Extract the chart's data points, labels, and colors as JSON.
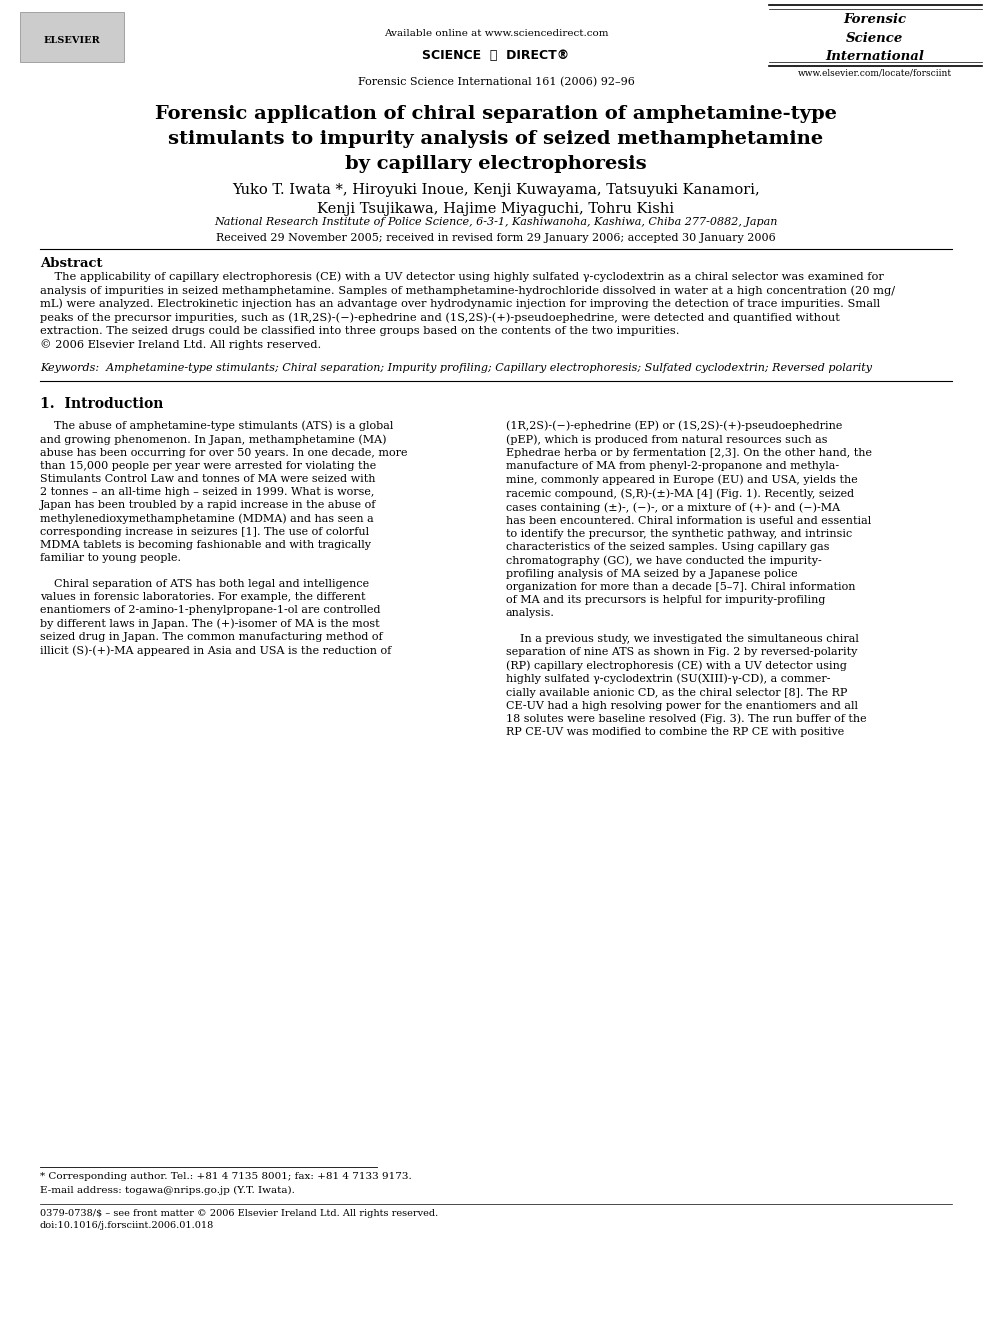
{
  "background_color": "#ffffff",
  "header": {
    "available_online": "Available online at www.sciencedirect.com",
    "journal_info": "Forensic Science International 161 (2006) 92–96",
    "journal_name_lines": [
      "Forensic",
      "Science",
      "International"
    ],
    "website": "www.elsevier.com/locate/forsciint"
  },
  "title": "Forensic application of chiral separation of amphetamine-type\nstimulants to impurity analysis of seized methamphetamine\nby capillary electrophoresis",
  "authors": "Yuko T. Iwata *, Hiroyuki Inoue, Kenji Kuwayama, Tatsuyuki Kanamori,\nKenji Tsujikawa, Hajime Miyaguchi, Tohru Kishi",
  "affiliation": "National Research Institute of Police Science, 6-3-1, Kashiwanoha, Kashiwa, Chiba 277-0882, Japan",
  "received": "Received 29 November 2005; received in revised form 29 January 2006; accepted 30 January 2006",
  "abstract_title": "Abstract",
  "abstract_text": "    The applicability of capillary electrophoresis (CE) with a UV detector using highly sulfated γ-cyclodextrin as a chiral selector was examined for\nanalysis of impurities in seized methamphetamine. Samples of methamphetamine-hydrochloride dissolved in water at a high concentration (20 mg/\nmL) were analyzed. Electrokinetic injection has an advantage over hydrodynamic injection for improving the detection of trace impurities. Small\npeaks of the precursor impurities, such as (1R,2S)-(−)-ephedrine and (1S,2S)-(+)-pseudoephedrine, were detected and quantified without\nextraction. The seized drugs could be classified into three groups based on the contents of the two impurities.\n© 2006 Elsevier Ireland Ltd. All rights reserved.",
  "keywords": "Keywords:  Amphetamine-type stimulants; Chiral separation; Impurity profiling; Capillary electrophoresis; Sulfated cyclodextrin; Reversed polarity",
  "section1_title": "1.  Introduction",
  "section1_col1": "    The abuse of amphetamine-type stimulants (ATS) is a global\nand growing phenomenon. In Japan, methamphetamine (MA)\nabuse has been occurring for over 50 years. In one decade, more\nthan 15,000 people per year were arrested for violating the\nStimulants Control Law and tonnes of MA were seized with\n2 tonnes – an all-time high – seized in 1999. What is worse,\nJapan has been troubled by a rapid increase in the abuse of\nmethylenedioxymethamphetamine (MDMA) and has seen a\ncorresponding increase in seizures [1]. The use of colorful\nMDMA tablets is becoming fashionable and with tragically\nfamiliar to young people.\n\n    Chiral separation of ATS has both legal and intelligence\nvalues in forensic laboratories. For example, the different\nenantiomers of 2-amino-1-phenylpropane-1-ol are controlled\nby different laws in Japan. The (+)-isomer of MA is the most\nseized drug in Japan. The common manufacturing method of\nillicit (S)-(+)-MA appeared in Asia and USA is the reduction of",
  "section1_col2": "(1R,2S)-(−)-ephedrine (EP) or (1S,2S)-(+)-pseudoephedrine\n(pEP), which is produced from natural resources such as\nEphedrae herba or by fermentation [2,3]. On the other hand, the\nmanufacture of MA from phenyl-2-propanone and methyla-\nmine, commonly appeared in Europe (EU) and USA, yields the\nracemic compound, (S,R)-(±)-MA [4] (Fig. 1). Recently, seized\ncases containing (±)-, (−)-, or a mixture of (+)- and (−)-MA\nhas been encountered. Chiral information is useful and essential\nto identify the precursor, the synthetic pathway, and intrinsic\ncharacteristics of the seized samples. Using capillary gas\nchromatography (GC), we have conducted the impurity-\nprofiling analysis of MA seized by a Japanese police\norganization for more than a decade [5–7]. Chiral information\nof MA and its precursors is helpful for impurity-profiling\nanalysis.\n\n    In a previous study, we investigated the simultaneous chiral\nseparation of nine ATS as shown in Fig. 2 by reversed-polarity\n(RP) capillary electrophoresis (CE) with a UV detector using\nhighly sulfated γ-cyclodextrin (SU(XIII)-γ-CD), a commer-\ncially available anionic CD, as the chiral selector [8]. The RP\nCE-UV had a high resolving power for the enantiomers and all\n18 solutes were baseline resolved (Fig. 3). The run buffer of the\nRP CE-UV was modified to combine the RP CE with positive",
  "footnote1": "* Corresponding author. Tel.: +81 4 7135 8001; fax: +81 4 7133 9173.",
  "footnote2": "E-mail address: togawa@nrips.go.jp (Y.T. Iwata).",
  "footer1": "0379-0738/$ – see front matter © 2006 Elsevier Ireland Ltd. All rights reserved.",
  "footer2": "doi:10.1016/j.forsciint.2006.01.018"
}
